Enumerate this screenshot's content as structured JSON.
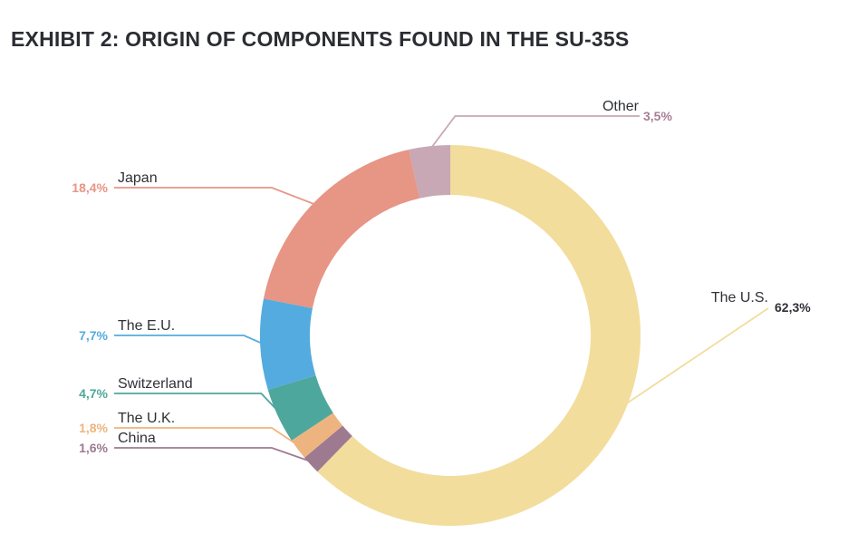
{
  "title": "EXHIBIT 2: ORIGIN OF COMPONENTS FOUND IN THE SU-35S",
  "chart_data": {
    "type": "pie",
    "title": "EXHIBIT 2: ORIGIN OF COMPONENTS FOUND IN THE SU-35S",
    "donut": true,
    "legend": "none (callout labels)",
    "slices": [
      {
        "label": "The U.S.",
        "value": 62.3,
        "value_label": "62,3%",
        "color": "#f2dd9d",
        "label_color": "#2f3136"
      },
      {
        "label": "China",
        "value": 1.6,
        "value_label": "1,6%",
        "color": "#9e7a91",
        "label_color": "#9e7a91"
      },
      {
        "label": "The U.K.",
        "value": 1.8,
        "value_label": "1,8%",
        "color": "#eeb47f",
        "label_color": "#eeb47f"
      },
      {
        "label": "Switzerland",
        "value": 4.7,
        "value_label": "4,7%",
        "color": "#4ea79c",
        "label_color": "#4ea79c"
      },
      {
        "label": "The E.U.",
        "value": 7.7,
        "value_label": "7,7%",
        "color": "#54abdf",
        "label_color": "#54abdf"
      },
      {
        "label": "Japan",
        "value": 18.4,
        "value_label": "18,4%",
        "color": "#e79585",
        "label_color": "#e79585"
      },
      {
        "label": "Other",
        "value": 3.5,
        "value_label": "3,5%",
        "color": "#c7a8b4",
        "label_color": "#a87d97"
      }
    ]
  }
}
